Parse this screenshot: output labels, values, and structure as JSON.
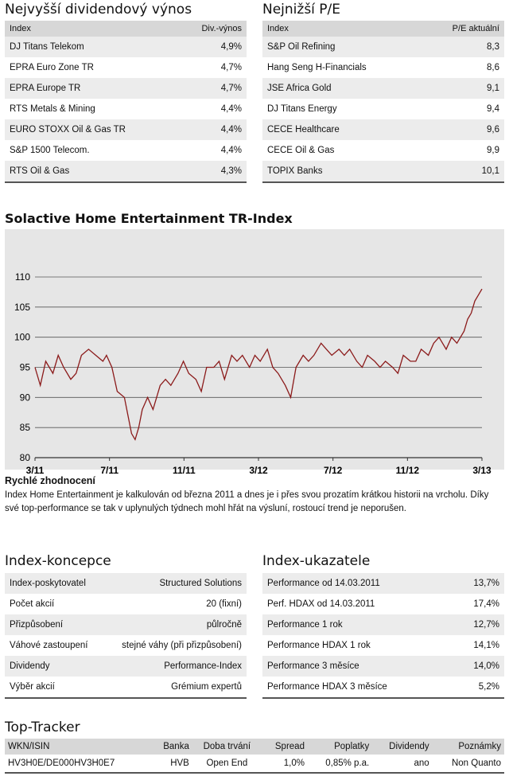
{
  "top_left": {
    "title": "Nejvyšší dividendový výnos",
    "col_index": "Index",
    "col_value": "Div.-výnos",
    "rows": [
      {
        "name": "DJ Titans Telekom",
        "value": "4,9%"
      },
      {
        "name": "EPRA Euro Zone TR",
        "value": "4,7%"
      },
      {
        "name": "EPRA Europe TR",
        "value": "4,7%"
      },
      {
        "name": "RTS Metals & Mining",
        "value": "4,4%"
      },
      {
        "name": "EURO STOXX Oil & Gas TR",
        "value": "4,4%"
      },
      {
        "name": "S&P 1500 Telecom.",
        "value": "4,4%"
      },
      {
        "name": "RTS Oil & Gas",
        "value": "4,3%"
      }
    ]
  },
  "top_right": {
    "title": "Nejnižší P/E",
    "col_index": "Index",
    "col_value": "P/E aktuální",
    "rows": [
      {
        "name": "S&P Oil Refining",
        "value": "8,3"
      },
      {
        "name": "Hang Seng H-Financials",
        "value": "8,6"
      },
      {
        "name": "JSE Africa Gold",
        "value": "9,1"
      },
      {
        "name": "DJ Titans Energy",
        "value": "9,4"
      },
      {
        "name": "CECE Healthcare",
        "value": "9,6"
      },
      {
        "name": "CECE Oil & Gas",
        "value": "9,9"
      },
      {
        "name": "TOPIX Banks",
        "value": "10,1"
      }
    ]
  },
  "chart_title": "Solactive Home Entertainment TR-Index",
  "chart_data": {
    "type": "line",
    "title": "Solactive Home Entertainment TR-Index",
    "xlabel": "",
    "ylabel": "",
    "x_ticks": [
      "3/11",
      "7/11",
      "11/11",
      "3/12",
      "7/12",
      "11/12",
      "3/13"
    ],
    "y_ticks": [
      80,
      85,
      90,
      95,
      100,
      105,
      110
    ],
    "ylim": [
      80,
      110
    ],
    "grid": true,
    "line_color": "#8b1a1a",
    "series": [
      {
        "x": [
          0,
          0.3,
          0.6,
          1.0,
          1.3,
          1.6,
          2.0,
          2.3,
          2.6,
          3.0,
          3.4,
          3.8,
          4.0,
          4.3,
          4.6,
          5.0,
          5.2,
          5.4,
          5.6,
          5.8,
          6.0,
          6.3,
          6.6,
          7.0,
          7.3,
          7.6,
          8.0,
          8.3,
          8.6,
          9.0,
          9.3,
          9.6,
          10.0,
          10.3,
          10.6,
          11.0,
          11.3,
          11.6,
          12.0,
          12.3,
          12.6,
          13.0,
          13.3,
          13.6,
          14.0,
          14.3,
          14.6,
          15.0,
          15.3,
          15.6,
          16.0,
          16.3,
          16.6,
          17.0,
          17.3,
          17.6,
          18.0,
          18.3,
          18.6,
          19.0,
          19.3,
          19.6,
          20.0,
          20.3,
          20.6,
          21.0,
          21.3,
          21.6,
          22.0,
          22.3,
          22.6,
          23.0,
          23.3,
          23.6,
          24.0,
          24.2,
          24.4,
          24.6,
          24.8,
          25.0
        ],
        "y": [
          95,
          92,
          96,
          94,
          97,
          95,
          93,
          94,
          97,
          98,
          97,
          96,
          97,
          95,
          91,
          90,
          87,
          84,
          83,
          85,
          88,
          90,
          88,
          92,
          93,
          92,
          94,
          96,
          94,
          93,
          91,
          95,
          95,
          96,
          93,
          97,
          96,
          97,
          95,
          97,
          96,
          98,
          95,
          94,
          92,
          90,
          95,
          97,
          96,
          97,
          99,
          98,
          97,
          98,
          97,
          98,
          96,
          95,
          97,
          96,
          95,
          96,
          95,
          94,
          97,
          96,
          96,
          98,
          97,
          99,
          100,
          98,
          100,
          99,
          101,
          103,
          104,
          106,
          107,
          108
        ]
      }
    ]
  },
  "quick_eval": {
    "title": "Rychlé zhodnocení",
    "text": "Index Home Entertainment je kalkulován od března 2011 a dnes je i přes svou prozatím krátkou historii na vrcholu. Díky své top-performance se tak v uplynulých týdnech mohl hřát na výsluní, rostoucí trend je neporušen."
  },
  "concept": {
    "title": "Index-koncepce",
    "rows": [
      {
        "name": "Index-poskytovatel",
        "value": "Structured Solutions"
      },
      {
        "name": "Počet akcií",
        "value": "20 (fixní)"
      },
      {
        "name": "Přizpůsobení",
        "value": "půlročně"
      },
      {
        "name": "Váhové zastoupení",
        "value": "stejné váhy (při přizpůsobení)"
      },
      {
        "name": "Dividendy",
        "value": "Performance-Index"
      },
      {
        "name": "Výběr akcií",
        "value": "Grémium expertů"
      }
    ]
  },
  "indicators": {
    "title": "Index-ukazatele",
    "rows": [
      {
        "name": "Performance od 14.03.2011",
        "value": "13,7%"
      },
      {
        "name": "Perf. HDAX od 14.03.2011",
        "value": "17,4%"
      },
      {
        "name": "Performance 1 rok",
        "value": "12,7%"
      },
      {
        "name": "Performance HDAX 1 rok",
        "value": "14,1%"
      },
      {
        "name": "Performance 3 měsíce",
        "value": "14,0%"
      },
      {
        "name": "Performance HDAX 3 měsíce",
        "value": "5,2%"
      }
    ]
  },
  "tracker": {
    "title": "Top-Tracker",
    "headers": [
      "WKN/ISIN",
      "Banka",
      "Doba trvání",
      "Spread",
      "Poplatky",
      "Dividendy",
      "Poznámky"
    ],
    "row": [
      "HV3H0E/DE000HV3H0E7",
      "HVB",
      "Open End",
      "1,0%",
      "0,85% p.a.",
      "ano",
      "Non Quanto"
    ]
  }
}
